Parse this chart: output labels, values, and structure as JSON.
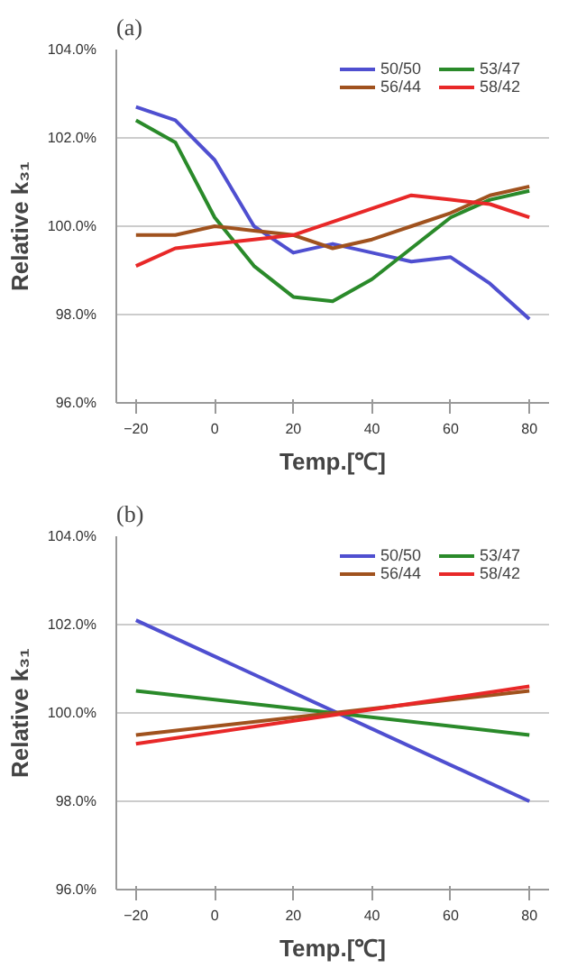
{
  "chart_data": [
    {
      "type": "line",
      "annotations": [
        "(a)"
      ],
      "xlabel": "Temp.[℃]",
      "ylabel": "Relative k₃₁",
      "x": [
        -20,
        -10,
        0,
        10,
        20,
        30,
        40,
        50,
        60,
        70,
        80
      ],
      "series": [
        {
          "name": "50/50",
          "color": "#4f4fd0",
          "values": [
            102.7,
            102.4,
            101.5,
            100.0,
            99.4,
            99.6,
            99.4,
            99.2,
            99.3,
            98.7,
            97.9
          ]
        },
        {
          "name": "53/47",
          "color": "#2a8a2a",
          "values": [
            102.4,
            101.9,
            100.2,
            99.1,
            98.4,
            98.3,
            98.8,
            99.5,
            100.2,
            100.6,
            100.8
          ]
        },
        {
          "name": "56/44",
          "color": "#a0521e",
          "values": [
            99.8,
            99.8,
            100.0,
            99.9,
            99.8,
            99.5,
            99.7,
            100.0,
            100.3,
            100.7,
            100.9
          ]
        },
        {
          "name": "58/42",
          "color": "#e82828",
          "values": [
            99.1,
            99.5,
            99.6,
            99.7,
            99.8,
            100.1,
            100.4,
            100.7,
            100.6,
            100.5,
            100.2
          ]
        }
      ],
      "xlim": [
        -25,
        85
      ],
      "xticks": [
        -20,
        0,
        20,
        40,
        60,
        80
      ],
      "ylim": [
        96,
        104
      ],
      "yticks": [
        {
          "value": 96,
          "label": "96.0%"
        },
        {
          "value": 98,
          "label": "98.0%"
        },
        {
          "value": 100,
          "label": "100.0%"
        },
        {
          "value": 102,
          "label": "102.0%"
        },
        {
          "value": 104,
          "label": "104.0%"
        }
      ],
      "grid": "y",
      "legend": "top right"
    },
    {
      "type": "line",
      "annotations": [
        "(b)"
      ],
      "xlabel": "Temp.[℃]",
      "ylabel": "Relative k₃₁",
      "x": [
        -20,
        80
      ],
      "series": [
        {
          "name": "50/50",
          "color": "#4f4fd0",
          "values": [
            102.1,
            98.0
          ]
        },
        {
          "name": "53/47",
          "color": "#2a8a2a",
          "values": [
            100.5,
            99.5
          ]
        },
        {
          "name": "56/44",
          "color": "#a0521e",
          "values": [
            99.5,
            100.5
          ]
        },
        {
          "name": "58/42",
          "color": "#e82828",
          "values": [
            99.3,
            100.6
          ]
        }
      ],
      "xlim": [
        -25,
        85
      ],
      "xticks": [
        -20,
        0,
        20,
        40,
        60,
        80
      ],
      "ylim": [
        96,
        104
      ],
      "yticks": [
        {
          "value": 96,
          "label": "96.0%"
        },
        {
          "value": 98,
          "label": "98.0%"
        },
        {
          "value": 100,
          "label": "100.0%"
        },
        {
          "value": 102,
          "label": "102.0%"
        },
        {
          "value": 104,
          "label": "104.0%"
        }
      ],
      "grid": "y",
      "legend": "top right"
    }
  ]
}
